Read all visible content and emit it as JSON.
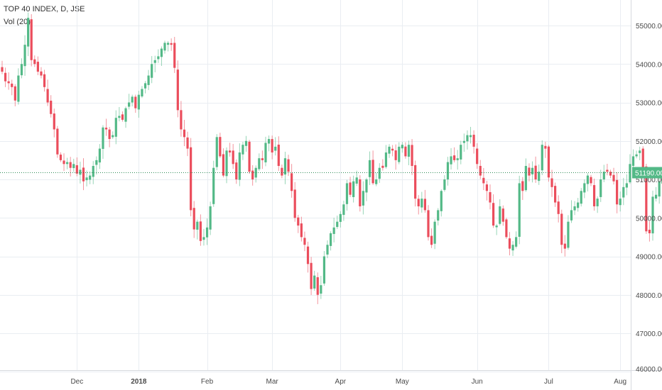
{
  "header": {
    "title": "TOP 40 INDEX, D, JSE",
    "indicator": "Vol (20)"
  },
  "colors": {
    "up": "#53b987",
    "down": "#eb4d5c",
    "grid": "#e9edf2",
    "price_line": "#2e8b57"
  },
  "chart_data": {
    "type": "candlestick",
    "ylim": [
      46000,
      55500
    ],
    "y_ticks": [
      "55000.00",
      "54000.00",
      "53000.00",
      "52000.00",
      "51000.00",
      "50000.00",
      "49000.00",
      "48000.00",
      "47000.00",
      "46000.00"
    ],
    "y_tick_values": [
      55000,
      54000,
      53000,
      52000,
      51000,
      50000,
      49000,
      48000,
      47000,
      46000
    ],
    "x_ticks": [
      {
        "label": "Dec",
        "index": 23,
        "bold": false
      },
      {
        "label": "2018",
        "index": 42,
        "bold": true
      },
      {
        "label": "Feb",
        "index": 63,
        "bold": false
      },
      {
        "label": "Mar",
        "index": 83,
        "bold": false
      },
      {
        "label": "Apr",
        "index": 104,
        "bold": false
      },
      {
        "label": "May",
        "index": 123,
        "bold": false
      },
      {
        "label": "Jun",
        "index": 146,
        "bold": false
      },
      {
        "label": "Jul",
        "index": 168,
        "bold": false
      },
      {
        "label": "Aug",
        "index": 190,
        "bold": false
      }
    ],
    "last_price": 51190,
    "last_price_label": "51190.00",
    "closes": [
      53800,
      53550,
      53500,
      53400,
      53050,
      53700,
      54000,
      54500,
      55200,
      54100,
      54000,
      53800,
      53700,
      53400,
      53000,
      52700,
      52300,
      51650,
      51500,
      51400,
      51450,
      51300,
      51400,
      51150,
      51250,
      50950,
      51050,
      51100,
      51350,
      51500,
      51800,
      52350,
      52300,
      52050,
      52150,
      52600,
      52650,
      52550,
      52850,
      53000,
      53150,
      52850,
      53200,
      53350,
      53500,
      53700,
      54000,
      54100,
      54200,
      54400,
      54550,
      54550,
      54500,
      53900,
      52800,
      52300,
      52100,
      51800,
      50200,
      49700,
      49900,
      49400,
      49500,
      49750,
      50300,
      51300,
      52100,
      51600,
      51100,
      51750,
      51700,
      51400,
      51000,
      51700,
      51900,
      52000,
      51200,
      51000,
      51300,
      51550,
      51500,
      51950,
      52050,
      51700,
      51850,
      51350,
      51100,
      51550,
      51200,
      50700,
      50000,
      49800,
      49500,
      49300,
      48800,
      48150,
      48500,
      48000,
      48250,
      49000,
      49300,
      49600,
      49750,
      49900,
      50100,
      50350,
      50900,
      50600,
      50950,
      51050,
      50300,
      50700,
      51000,
      51500,
      50900,
      51000,
      51300,
      51300,
      51700,
      51850,
      51750,
      51500,
      51850,
      51900,
      51600,
      51900,
      51350,
      50500,
      50300,
      50500,
      50200,
      49500,
      49300,
      49900,
      50200,
      50700,
      51000,
      51450,
      51600,
      51500,
      51550,
      51900,
      52000,
      52150,
      52150,
      51850,
      51400,
      51100,
      50900,
      50700,
      50400,
      49800,
      49800,
      50300,
      49900,
      49500,
      49200,
      49300,
      49500,
      50900,
      50700,
      51350,
      51100,
      51300,
      51000,
      51200,
      51900,
      51800,
      51050,
      50800,
      50400,
      50100,
      49300,
      49200,
      49900,
      50200,
      50300,
      50400,
      50700,
      50900,
      51100,
      50900,
      50300,
      50500,
      51000,
      51200,
      51200,
      51100,
      50950,
      50350,
      50500,
      50800,
      50900,
      51400,
      51600,
      51650,
      51750,
      51300,
      49650,
      49600,
      50550,
      50600,
      50950,
      51150,
      51190
    ]
  }
}
